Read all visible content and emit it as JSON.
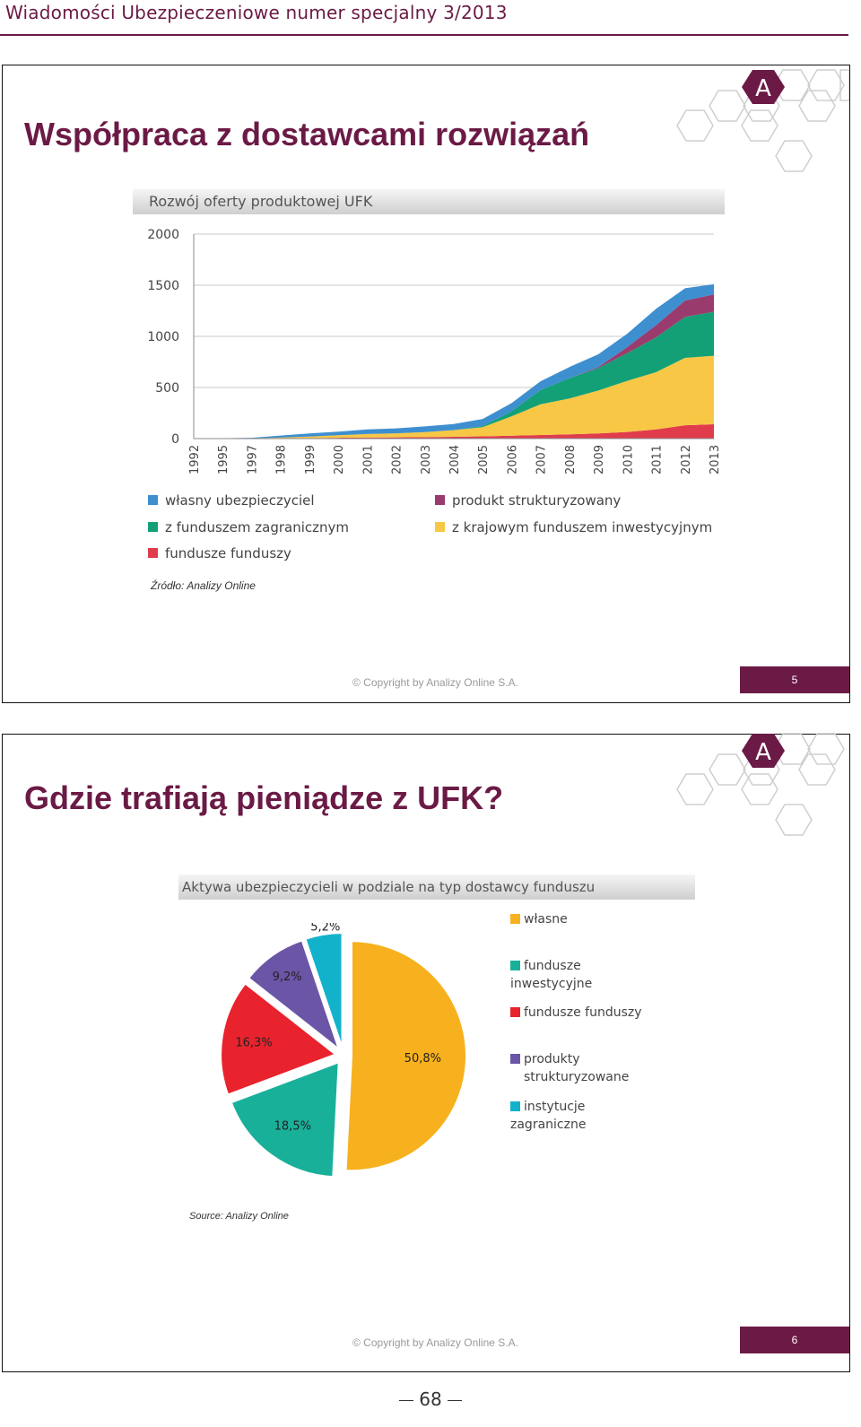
{
  "header": {
    "title": "Wiadomości Ubezpieczeniowe numer specjalny 3/2013"
  },
  "slides": [
    {
      "title": "Współpraca z dostawcami rozwiązań",
      "chart_header": "Rozwój oferty produktowej UFK",
      "source": "Źródło: Analizy Online",
      "copyright": "© Copyright by Analizy Online S.A.",
      "page": "5"
    },
    {
      "title": "Gdzie trafiają pieniądze z UFK?",
      "chart_header": "Aktywa ubezpieczycieli w podziale na typ dostawcy funduszu",
      "source": "Source: Analizy Online",
      "copyright": "© Copyright by Analizy Online S.A.",
      "page": "6"
    }
  ],
  "logo_letter": "A",
  "page_number": "68",
  "colors": {
    "brand": "#6b1a45",
    "blue": "#3e8fd0",
    "purple": "#9a3b6e",
    "green": "#13a077",
    "yellow": "#f7c745",
    "red": "#e03c4c",
    "pie_orange": "#f7b11e",
    "pie_teal": "#19b09a",
    "pie_red": "#e8232d",
    "pie_violet": "#6b55a6",
    "pie_cyan": "#13b2cb"
  },
  "chart_data": [
    {
      "type": "area",
      "title": "Rozwój oferty produktowej UFK",
      "stacked": true,
      "x": [
        "1992",
        "1995",
        "1997",
        "1998",
        "1999",
        "2000",
        "2001",
        "2002",
        "2003",
        "2004",
        "2005",
        "2006",
        "2007",
        "2008",
        "2009",
        "2010",
        "2011",
        "2012",
        "2013"
      ],
      "ylim": [
        0,
        2000
      ],
      "yticks": [
        0,
        500,
        1000,
        1500,
        2000
      ],
      "grid": true,
      "legend_position": "bottom",
      "series": [
        {
          "name": "fundusze funduszy",
          "color": "#e03c4c",
          "values": [
            0,
            0,
            0,
            2,
            5,
            8,
            10,
            12,
            14,
            18,
            22,
            28,
            35,
            42,
            50,
            65,
            90,
            130,
            140
          ]
        },
        {
          "name": "z krajowym funduszem inwestycyjnym",
          "color": "#f7c745",
          "values": [
            0,
            1,
            3,
            8,
            15,
            25,
            35,
            40,
            50,
            65,
            90,
            190,
            300,
            350,
            420,
            500,
            560,
            660,
            670
          ]
        },
        {
          "name": "z funduszem zagranicznym",
          "color": "#13a077",
          "values": [
            0,
            0,
            0,
            0,
            0,
            0,
            0,
            0,
            0,
            0,
            10,
            50,
            140,
            200,
            220,
            270,
            340,
            400,
            430
          ]
        },
        {
          "name": "produkt strukturyzowany",
          "color": "#9a3b6e",
          "values": [
            0,
            0,
            0,
            0,
            0,
            0,
            0,
            0,
            0,
            0,
            0,
            0,
            0,
            0,
            10,
            60,
            120,
            160,
            170
          ]
        },
        {
          "name": "własny ubezpieczyciel",
          "color": "#3e8fd0",
          "values": [
            0,
            2,
            5,
            20,
            30,
            35,
            45,
            48,
            55,
            60,
            70,
            80,
            85,
            108,
            125,
            130,
            160,
            120,
            100
          ]
        }
      ],
      "legend": [
        {
          "label": "własny ubezpieczyciel",
          "color": "#3e8fd0"
        },
        {
          "label": "produkt strukturyzowany",
          "color": "#9a3b6e"
        },
        {
          "label": "z funduszem zagranicznym",
          "color": "#13a077"
        },
        {
          "label": "z krajowym funduszem inwestycyjnym",
          "color": "#f7c745"
        },
        {
          "label": "fundusze funduszy",
          "color": "#e03c4c"
        }
      ]
    },
    {
      "type": "pie",
      "title": "Aktywa ubezpieczycieli w podziale na typ dostawcy funduszu",
      "legend_position": "right",
      "slices": [
        {
          "name": "własne",
          "value": 50.8,
          "label": "50,8%",
          "color": "#f7b11e"
        },
        {
          "name": "fundusze inwestycyjne",
          "value": 18.5,
          "label": "18,5%",
          "color": "#19b09a"
        },
        {
          "name": "fundusze funduszy",
          "value": 16.3,
          "label": "16,3%",
          "color": "#e8232d"
        },
        {
          "name": "produkty strukturyzowane",
          "value": 9.2,
          "label": "9,2%",
          "color": "#6b55a6"
        },
        {
          "name": "instytucje zagraniczne",
          "value": 5.2,
          "label": "5,2%",
          "color": "#13b2cb"
        }
      ]
    }
  ]
}
